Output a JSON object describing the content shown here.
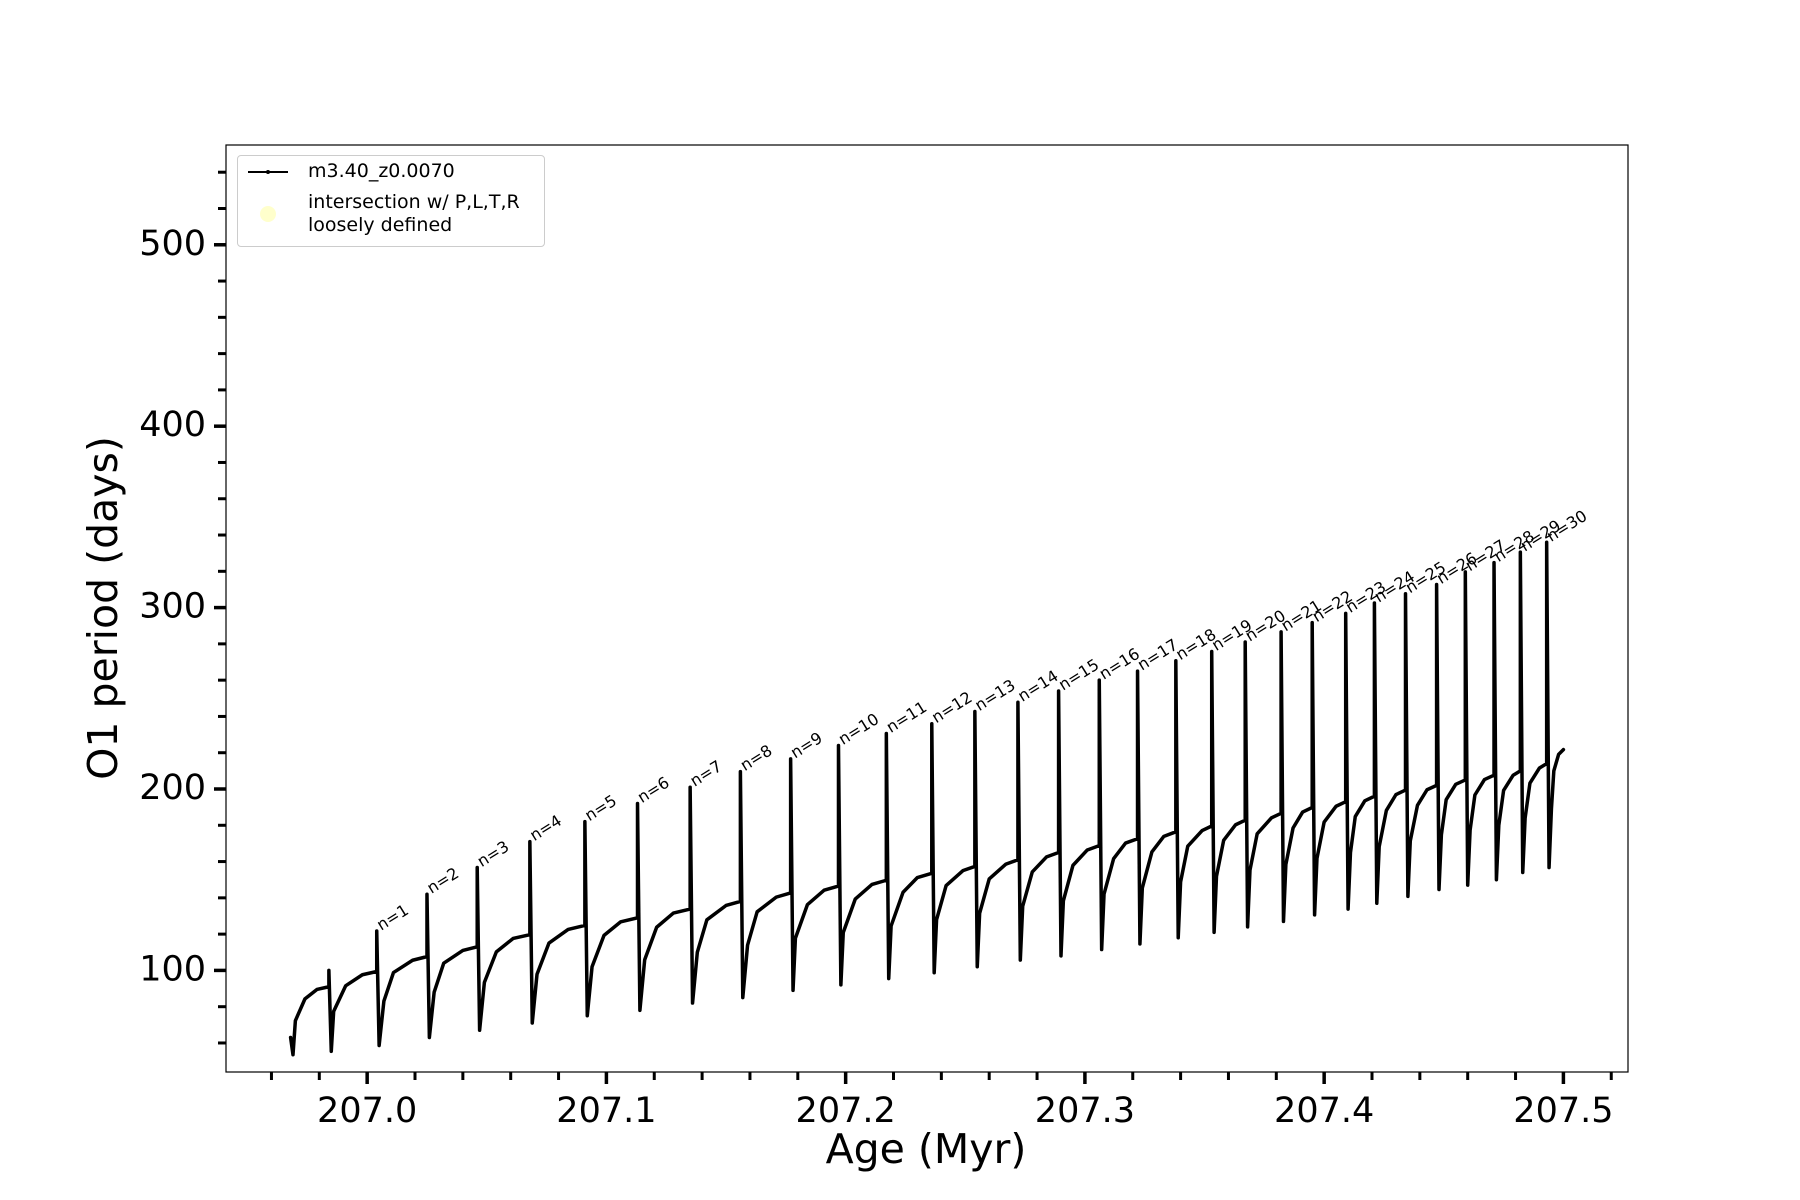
{
  "chart_data": {
    "type": "line",
    "xlabel": "Age (Myr)",
    "ylabel": "O1 period (days)",
    "xlim": [
      206.941,
      207.527
    ],
    "ylim": [
      44,
      555
    ],
    "xticks": [
      {
        "value": 207,
        "label": "207.0"
      },
      207.1,
      207.2,
      207.3,
      207.4,
      207.5
    ],
    "xticks_minor": [
      206.96,
      206.98,
      207.02,
      207.04,
      207.06,
      207.08,
      207.12,
      207.14,
      207.16,
      207.18,
      207.22,
      207.24,
      207.26,
      207.28,
      207.32,
      207.34,
      207.36,
      207.38,
      207.42,
      207.44,
      207.46,
      207.48,
      207.52
    ],
    "yticks": [
      100,
      200,
      300,
      400,
      500
    ],
    "yticks_minor": [
      60,
      80,
      120,
      140,
      160,
      180,
      220,
      240,
      260,
      280,
      320,
      340,
      360,
      380,
      420,
      440,
      460,
      480,
      520,
      540
    ],
    "legend": "upper left",
    "series": [
      {
        "name": "m3.40_z0.0070",
        "color": "#000000",
        "x": [
          206.968,
          206.969,
          206.97,
          206.974,
          206.979,
          206.984,
          206.984,
          206.985,
          206.986,
          206.991,
          206.998,
          207.004,
          207.004,
          207.005,
          207.007,
          207.011,
          207.019,
          207.025,
          207.025,
          207.026,
          207.028,
          207.032,
          207.04,
          207.046,
          207.046,
          207.047,
          207.049,
          207.054,
          207.061,
          207.068,
          207.068,
          207.069,
          207.071,
          207.076,
          207.084,
          207.091,
          207.091,
          207.092,
          207.094,
          207.099,
          207.106,
          207.113,
          207.113,
          207.114,
          207.116,
          207.121,
          207.128,
          207.135,
          207.135,
          207.136,
          207.138,
          207.142,
          207.15,
          207.156,
          207.156,
          207.157,
          207.159,
          207.163,
          207.171,
          207.177,
          207.177,
          207.178,
          207.179,
          207.184,
          207.191,
          207.197,
          207.197,
          207.198,
          207.199,
          207.204,
          207.211,
          207.217,
          207.217,
          207.218,
          207.219,
          207.224,
          207.23,
          207.236,
          207.236,
          207.237,
          207.238,
          207.242,
          207.249,
          207.254,
          207.254,
          207.255,
          207.256,
          207.26,
          207.267,
          207.272,
          207.272,
          207.273,
          207.274,
          207.278,
          207.284,
          207.289,
          207.289,
          207.29,
          207.291,
          207.295,
          207.301,
          207.306,
          207.306,
          207.307,
          207.308,
          207.312,
          207.317,
          207.322,
          207.322,
          207.323,
          207.324,
          207.328,
          207.333,
          207.338,
          207.338,
          207.339,
          207.34,
          207.343,
          207.349,
          207.353,
          207.353,
          207.354,
          207.355,
          207.358,
          207.363,
          207.367,
          207.367,
          207.368,
          207.369,
          207.372,
          207.378,
          207.382,
          207.382,
          207.383,
          207.384,
          207.387,
          207.391,
          207.395,
          207.395,
          207.396,
          207.397,
          207.4,
          207.405,
          207.409,
          207.409,
          207.41,
          207.411,
          207.413,
          207.417,
          207.421,
          207.421,
          207.422,
          207.423,
          207.426,
          207.43,
          207.434,
          207.434,
          207.435,
          207.436,
          207.439,
          207.443,
          207.447,
          207.447,
          207.448,
          207.449,
          207.451,
          207.455,
          207.459,
          207.459,
          207.46,
          207.461,
          207.463,
          207.467,
          207.471,
          207.471,
          207.472,
          207.473,
          207.475,
          207.479,
          207.482,
          207.482,
          207.483,
          207.484,
          207.486,
          207.49,
          207.493,
          207.493,
          207.494,
          207.495,
          207.496,
          207.498,
          207.5
        ],
        "values": [
          63,
          53.5,
          72.3,
          84.3,
          89.5,
          91,
          100,
          55.4,
          77.4,
          91.5,
          97.6,
          99.4,
          121.7,
          58.6,
          83.1,
          98.8,
          105.6,
          107.6,
          142,
          63,
          88,
          104,
          111,
          113,
          156.7,
          67,
          93.4,
          110.2,
          117.6,
          119.7,
          171,
          71,
          97.9,
          115.1,
          122.6,
          124.8,
          182,
          75,
          102,
          119.3,
          126.8,
          129,
          192,
          78,
          105.9,
          123.8,
          131.6,
          133.8,
          201,
          82,
          110,
          127.9,
          135.8,
          138,
          209.6,
          85,
          113.9,
          132.3,
          140.4,
          142.7,
          216.6,
          89,
          117.8,
          136.2,
          144.2,
          146.5,
          224,
          92,
          120.9,
          139.3,
          147.4,
          149.7,
          230.6,
          95.5,
          124.5,
          143.1,
          151.2,
          153.5,
          236,
          98.7,
          128,
          146.8,
          155,
          157.3,
          242.7,
          102,
          131.5,
          150.4,
          158.6,
          161,
          247.8,
          105.7,
          135.4,
          154.3,
          162.6,
          165,
          254,
          108,
          138.4,
          157.9,
          166.4,
          168.8,
          260,
          111.5,
          142.1,
          161.6,
          170.2,
          172.6,
          265,
          114.6,
          145.5,
          165.3,
          173.9,
          176.4,
          270.7,
          118,
          148.8,
          168.5,
          177.1,
          179.6,
          275.8,
          121,
          151.9,
          171.7,
          180.3,
          182.8,
          281,
          124,
          155.3,
          175.3,
          184.1,
          186.6,
          286.6,
          127,
          158.4,
          178.5,
          187.3,
          189.8,
          291.7,
          130.6,
          161.8,
          181.8,
          190.5,
          193,
          296.8,
          133.8,
          164.9,
          184.8,
          193.5,
          196,
          302.5,
          137,
          168.2,
          188.2,
          196.9,
          199.4,
          307.6,
          140.8,
          171.4,
          191,
          199.6,
          202,
          312.7,
          144.6,
          174.8,
          194.1,
          202.6,
          205,
          319.7,
          147,
          177.3,
          196.7,
          205.2,
          207.6,
          324.8,
          150,
          180,
          199.2,
          207.6,
          210,
          330.6,
          154,
          184,
          203.2,
          211.6,
          214,
          336,
          156.7,
          189.2,
          210,
          219.1,
          221.7
        ]
      },
      {
        "name": "intersection w/ P,L,T,R\nloosely defined",
        "color": "#ffffcc",
        "x": [],
        "values": []
      }
    ],
    "annotations": [
      "n=1",
      "n=2",
      "n=3",
      "n=4",
      "n=5",
      "n=6",
      "n=7",
      "n=8",
      "n=9",
      "n=10",
      "n=11",
      "n=12",
      "n=13",
      "n=14",
      "n=15",
      "n=16",
      "n=17",
      "n=18",
      "n=19",
      "n=20",
      "n=21",
      "n=22",
      "n=23",
      "n=24",
      "n=25",
      "n=26",
      "n=27",
      "n=28",
      "n=29",
      "n=30"
    ]
  }
}
